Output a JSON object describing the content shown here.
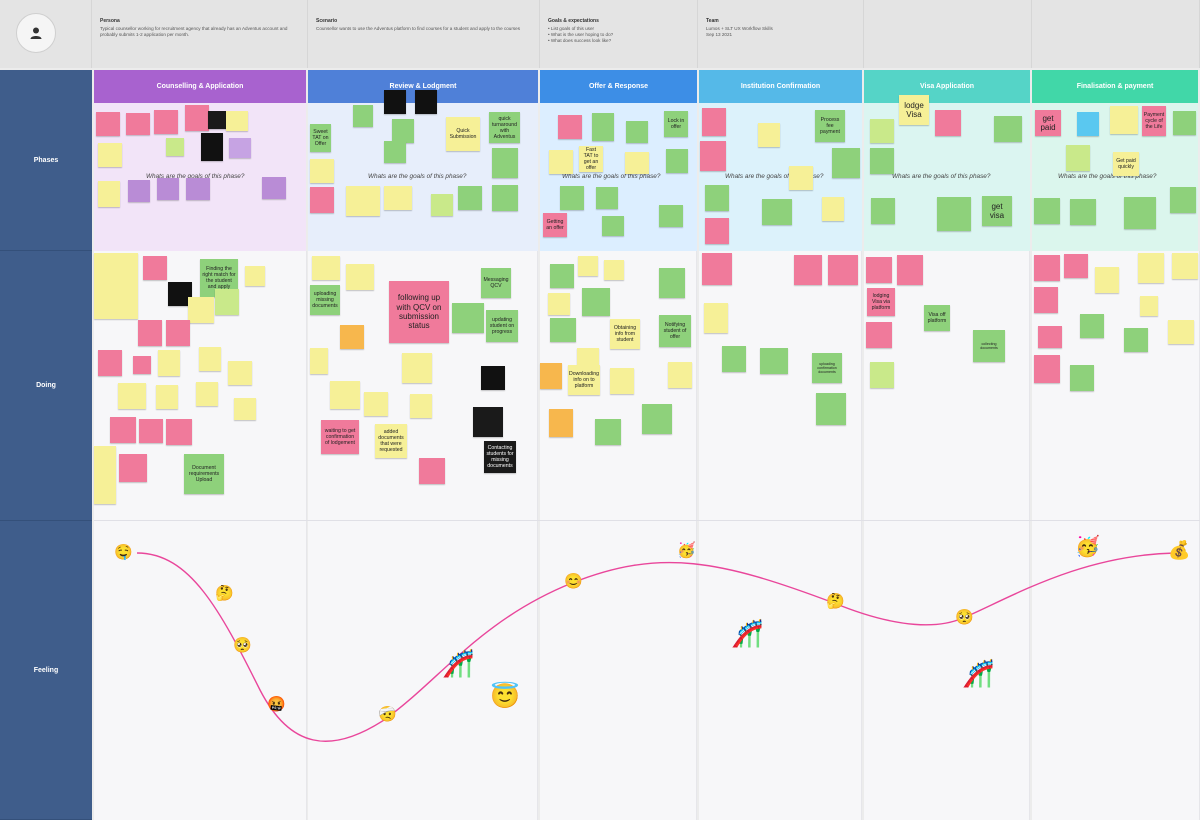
{
  "header": {
    "persona": {
      "title": "Persona",
      "body": "Typical counsellor working for recruitment agency that already has an Adventus account and probably submits 1-2 application per month."
    },
    "scenario": {
      "title": "Scenario",
      "body": "Counsellor wants to use the Adventus platform to find courses for a student and apply to the courses"
    },
    "goals": {
      "title": "Goals & expectations",
      "body": "• List goals of this user\n• What is the user hoping to do?\n• What does success look like?"
    },
    "team": {
      "title": "Team",
      "body": "Lumos + SLT UX Workflow Skills\nSep 13 2021"
    }
  },
  "rows": {
    "phases": "Phases",
    "doing": "Doing",
    "feeling": "Feeling"
  },
  "colors": {
    "row_label": "#3f5d8b",
    "curve": "#e9469b"
  },
  "phases": [
    {
      "label": "Counselling & Application",
      "color": "#a862cf",
      "bg": "#f2e4f8"
    },
    {
      "label": "Review & Lodgment",
      "color": "#4f80d8",
      "bg": "#e7eefb"
    },
    {
      "label": "Offer & Response",
      "color": "#3d8ee6",
      "bg": "#dceeff"
    },
    {
      "label": "Institution Confirmation",
      "color": "#55b9e8",
      "bg": "#dcf2fb"
    },
    {
      "label": "Visa Application",
      "color": "#55d4c7",
      "bg": "#dbf5f1"
    },
    {
      "label": "Finalisation & payment",
      "color": "#41d7a8",
      "bg": "#dbf6ed"
    }
  ],
  "goal_prompt": "Whats are the goals of this phase?",
  "phase_notes": [
    {
      "text": "Sweet TAT on Offer"
    },
    {
      "text": "Quick Submission"
    },
    {
      "text": "quick turnaround with Adventus"
    },
    {
      "text": "Lock in offer"
    },
    {
      "text": "Fast TAT to get an offer"
    },
    {
      "text": "Getting an offer"
    },
    {
      "text": "Process fee payment"
    },
    {
      "text": "lodge Visa"
    },
    {
      "text": "get visa"
    },
    {
      "text": "get paid"
    },
    {
      "text": "Get paid quickly"
    },
    {
      "text": "Payment cycle of the Life"
    }
  ],
  "doing_notes": [
    {
      "text": "Finding the right match for the student and apply"
    },
    {
      "text": "Document requirements Upload"
    },
    {
      "text": "following up with QCV on submission status"
    },
    {
      "text": "Messaging QCV"
    },
    {
      "text": "uploading missing documents"
    },
    {
      "text": "updating student on progress"
    },
    {
      "text": "waiting to get confirmation of lodgement"
    },
    {
      "text": "added documents that were requested"
    },
    {
      "text": "Contacting students for missing documents"
    },
    {
      "text": "Obtaining info from student"
    },
    {
      "text": "Notifying student of offer"
    },
    {
      "text": "Downloading info on to platform"
    },
    {
      "text": "uploading confirmation documents"
    },
    {
      "text": "lodging Visa via platform"
    },
    {
      "text": "Visa off platform"
    },
    {
      "text": "collecting documents"
    }
  ],
  "feeling": {
    "emojis": [
      "🤤",
      "🤔",
      "🥺",
      "🤬",
      "🤕",
      "🎢",
      "😇",
      "😊",
      "🥳",
      "🎢",
      "🤔",
      "🥺",
      "🎢",
      "🥳",
      "💰"
    ]
  }
}
